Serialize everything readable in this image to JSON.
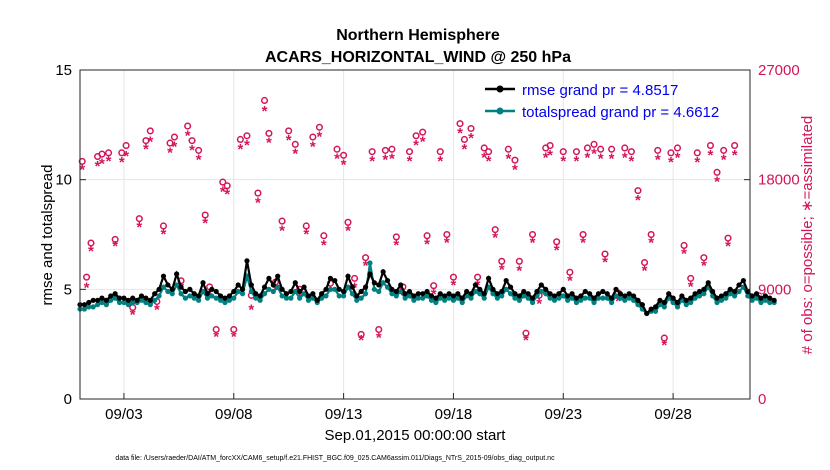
{
  "chart_data": {
    "type": "line",
    "title_line1": "Northern Hemisphere",
    "title_line2": "ACARS_HORIZONTAL_WIND @ 250 hPa",
    "xlabel": "Sep.01,2015 00:00:00 start",
    "ylabel_left": "rmse and totalspread",
    "ylabel_right": "# of obs: o=possible; ∗=assimilated",
    "ylim_left": [
      0,
      15
    ],
    "ylim_right": [
      0,
      27000
    ],
    "xlim_days": [
      0,
      30.5
    ],
    "left_ticks": [
      0,
      5,
      10,
      15
    ],
    "right_ticks": [
      0,
      9000,
      18000,
      27000
    ],
    "x_ticks": [
      {
        "day": 2,
        "label": "09/03"
      },
      {
        "day": 7,
        "label": "09/08"
      },
      {
        "day": 12,
        "label": "09/13"
      },
      {
        "day": 17,
        "label": "09/18"
      },
      {
        "day": 22,
        "label": "09/23"
      },
      {
        "day": 27,
        "label": "09/28"
      }
    ],
    "series": [
      {
        "name": "rmse grand pr = 4.8517",
        "color": "#000000",
        "values": [
          4.3,
          4.3,
          4.4,
          4.5,
          4.5,
          4.6,
          4.5,
          4.7,
          4.8,
          4.6,
          4.6,
          4.5,
          4.6,
          4.5,
          4.7,
          4.6,
          4.5,
          4.8,
          5.0,
          5.6,
          5.2,
          5.0,
          5.7,
          5.1,
          4.9,
          5.0,
          4.8,
          4.7,
          5.3,
          4.8,
          5.0,
          4.9,
          4.7,
          4.6,
          4.7,
          4.9,
          5.2,
          5.0,
          6.3,
          5.2,
          4.8,
          4.7,
          5.1,
          5.5,
          5.2,
          5.6,
          5.0,
          4.8,
          4.9,
          5.3,
          4.9,
          5.1,
          4.7,
          4.8,
          4.5,
          4.8,
          5.0,
          5.5,
          5.4,
          5.0,
          4.9,
          5.6,
          5.1,
          4.7,
          4.9,
          5.1,
          5.7,
          5.3,
          5.2,
          5.8,
          5.4,
          5.0,
          4.9,
          5.2,
          4.8,
          4.9,
          4.7,
          4.8,
          4.8,
          4.9,
          4.7,
          4.6,
          4.8,
          4.7,
          4.8,
          4.7,
          4.8,
          4.6,
          4.9,
          4.8,
          5.2,
          5.0,
          4.8,
          5.5,
          5.0,
          4.8,
          4.9,
          5.4,
          5.1,
          4.8,
          4.7,
          4.9,
          4.8,
          4.6,
          4.9,
          5.2,
          5.0,
          4.8,
          4.7,
          4.8,
          5.0,
          4.7,
          4.8,
          4.6,
          4.7,
          4.9,
          4.8,
          4.6,
          4.8,
          4.9,
          4.8,
          4.6,
          5.0,
          4.8,
          4.7,
          4.8,
          4.7,
          4.5,
          4.3,
          3.9,
          4.1,
          4.2,
          4.5,
          4.4,
          4.8,
          4.6,
          4.4,
          4.7,
          4.5,
          4.6,
          4.8,
          4.9,
          5.0,
          5.3,
          4.9,
          4.6,
          4.7,
          4.8,
          5.0,
          4.9,
          5.2,
          5.4,
          4.9,
          4.7,
          4.8,
          4.6,
          4.7,
          4.6,
          4.5
        ],
        "days_start": 0.0,
        "days_step": 0.2
      },
      {
        "name": "totalspread grand pr = 4.6612",
        "color": "#008080",
        "values": [
          4.1,
          4.1,
          4.2,
          4.2,
          4.3,
          4.4,
          4.3,
          4.5,
          4.6,
          4.4,
          4.4,
          4.3,
          4.4,
          4.4,
          4.5,
          4.4,
          4.3,
          4.5,
          4.7,
          5.1,
          4.9,
          4.8,
          5.2,
          4.8,
          4.6,
          4.7,
          4.6,
          4.5,
          4.9,
          4.6,
          4.7,
          4.6,
          4.5,
          4.4,
          4.5,
          4.6,
          4.9,
          4.8,
          5.6,
          4.9,
          4.6,
          4.5,
          4.8,
          5.0,
          4.9,
          5.1,
          4.7,
          4.6,
          4.6,
          4.9,
          4.6,
          4.8,
          4.5,
          4.6,
          4.4,
          4.6,
          4.7,
          5.0,
          5.0,
          4.7,
          4.7,
          5.1,
          4.8,
          4.5,
          4.6,
          4.8,
          6.2,
          5.0,
          4.9,
          5.3,
          5.1,
          4.8,
          4.7,
          4.9,
          4.6,
          4.7,
          4.5,
          4.6,
          4.6,
          4.7,
          4.5,
          4.4,
          4.6,
          4.5,
          4.6,
          4.5,
          4.6,
          4.4,
          4.7,
          4.6,
          4.9,
          4.8,
          4.6,
          5.1,
          4.8,
          4.6,
          4.7,
          5.0,
          4.8,
          4.6,
          4.5,
          4.7,
          4.6,
          4.4,
          4.7,
          4.9,
          4.8,
          4.6,
          4.5,
          4.6,
          4.7,
          4.5,
          4.6,
          4.4,
          4.5,
          4.6,
          4.6,
          4.4,
          4.6,
          4.6,
          4.6,
          4.4,
          4.7,
          4.6,
          4.5,
          4.6,
          4.5,
          4.3,
          4.1,
          3.9,
          4.0,
          4.0,
          4.3,
          4.2,
          4.6,
          4.4,
          4.2,
          4.5,
          4.3,
          4.4,
          4.6,
          4.7,
          4.8,
          5.1,
          4.7,
          4.4,
          4.5,
          4.6,
          4.8,
          4.7,
          4.9,
          5.1,
          4.7,
          4.5,
          4.6,
          4.4,
          4.5,
          4.4,
          4.4
        ],
        "days_start": 0.0,
        "days_step": 0.2
      }
    ],
    "obs_possible": [
      [
        0.1,
        19500
      ],
      [
        0.3,
        10000
      ],
      [
        0.5,
        12800
      ],
      [
        0.8,
        19900
      ],
      [
        1.0,
        20100
      ],
      [
        1.3,
        20200
      ],
      [
        1.6,
        13100
      ],
      [
        1.9,
        20200
      ],
      [
        2.1,
        20800
      ],
      [
        2.4,
        7500
      ],
      [
        2.7,
        14800
      ],
      [
        3.0,
        21200
      ],
      [
        3.2,
        22000
      ],
      [
        3.5,
        8000
      ],
      [
        3.8,
        14200
      ],
      [
        4.1,
        21000
      ],
      [
        4.3,
        21500
      ],
      [
        4.6,
        9700
      ],
      [
        4.9,
        22400
      ],
      [
        5.1,
        21200
      ],
      [
        5.4,
        20400
      ],
      [
        5.7,
        15100
      ],
      [
        5.9,
        9200
      ],
      [
        6.2,
        5700
      ],
      [
        6.5,
        17800
      ],
      [
        6.7,
        17500
      ],
      [
        7.0,
        5700
      ],
      [
        7.3,
        21300
      ],
      [
        7.6,
        21600
      ],
      [
        7.8,
        8500
      ],
      [
        8.1,
        16900
      ],
      [
        8.4,
        24500
      ],
      [
        8.6,
        21800
      ],
      [
        8.9,
        9600
      ],
      [
        9.2,
        14600
      ],
      [
        9.5,
        22000
      ],
      [
        9.8,
        20900
      ],
      [
        10.0,
        9000
      ],
      [
        10.3,
        14200
      ],
      [
        10.6,
        21500
      ],
      [
        10.9,
        22300
      ],
      [
        11.1,
        13400
      ],
      [
        11.4,
        9500
      ],
      [
        11.7,
        20500
      ],
      [
        12.0,
        20000
      ],
      [
        12.2,
        14500
      ],
      [
        12.5,
        9900
      ],
      [
        12.8,
        5300
      ],
      [
        13.0,
        11600
      ],
      [
        13.3,
        20300
      ],
      [
        13.6,
        5700
      ],
      [
        13.9,
        20400
      ],
      [
        14.2,
        20500
      ],
      [
        14.4,
        13300
      ],
      [
        14.7,
        9200
      ],
      [
        15.0,
        20300
      ],
      [
        15.3,
        21600
      ],
      [
        15.6,
        21900
      ],
      [
        15.8,
        13400
      ],
      [
        16.1,
        9300
      ],
      [
        16.4,
        20300
      ],
      [
        16.7,
        13500
      ],
      [
        17.0,
        10000
      ],
      [
        17.3,
        22600
      ],
      [
        17.5,
        21300
      ],
      [
        17.8,
        22200
      ],
      [
        18.1,
        10000
      ],
      [
        18.4,
        20600
      ],
      [
        18.6,
        20300
      ],
      [
        18.9,
        13900
      ],
      [
        19.2,
        11300
      ],
      [
        19.5,
        20500
      ],
      [
        19.8,
        19600
      ],
      [
        20.0,
        11300
      ],
      [
        20.3,
        5400
      ],
      [
        20.6,
        13500
      ],
      [
        20.9,
        8500
      ],
      [
        21.2,
        20600
      ],
      [
        21.4,
        20800
      ],
      [
        21.7,
        12900
      ],
      [
        22.0,
        20300
      ],
      [
        22.3,
        10400
      ],
      [
        22.6,
        20300
      ],
      [
        22.9,
        13500
      ],
      [
        23.1,
        20600
      ],
      [
        23.4,
        20900
      ],
      [
        23.7,
        20500
      ],
      [
        23.9,
        11900
      ],
      [
        24.2,
        20500
      ],
      [
        24.5,
        8700
      ],
      [
        24.8,
        20600
      ],
      [
        25.1,
        20300
      ],
      [
        25.4,
        17100
      ],
      [
        25.7,
        11200
      ],
      [
        26.0,
        13500
      ],
      [
        26.3,
        20400
      ],
      [
        26.6,
        5000
      ],
      [
        26.9,
        20200
      ],
      [
        27.2,
        20600
      ],
      [
        27.5,
        12600
      ],
      [
        27.8,
        9900
      ],
      [
        28.1,
        20200
      ],
      [
        28.4,
        11600
      ],
      [
        28.7,
        20800
      ],
      [
        29.0,
        18600
      ],
      [
        29.3,
        20400
      ],
      [
        29.5,
        13200
      ],
      [
        29.8,
        20800
      ]
    ],
    "obs_assimilated": [
      [
        0.1,
        19000
      ],
      [
        0.3,
        9300
      ],
      [
        0.5,
        12300
      ],
      [
        0.8,
        19300
      ],
      [
        1.0,
        19500
      ],
      [
        1.3,
        19700
      ],
      [
        1.6,
        12700
      ],
      [
        1.9,
        19600
      ],
      [
        2.1,
        20100
      ],
      [
        2.4,
        7100
      ],
      [
        2.7,
        14300
      ],
      [
        3.0,
        20700
      ],
      [
        3.2,
        21300
      ],
      [
        3.5,
        7500
      ],
      [
        3.8,
        13700
      ],
      [
        4.1,
        20400
      ],
      [
        4.3,
        20900
      ],
      [
        4.6,
        9300
      ],
      [
        4.9,
        21800
      ],
      [
        5.1,
        20600
      ],
      [
        5.4,
        19800
      ],
      [
        5.7,
        14600
      ],
      [
        5.9,
        8800
      ],
      [
        6.2,
        5300
      ],
      [
        6.5,
        17200
      ],
      [
        6.7,
        17000
      ],
      [
        7.0,
        5300
      ],
      [
        7.3,
        20700
      ],
      [
        7.6,
        21000
      ],
      [
        7.8,
        7500
      ],
      [
        8.1,
        16300
      ],
      [
        8.4,
        23800
      ],
      [
        8.6,
        21200
      ],
      [
        8.9,
        9100
      ],
      [
        9.2,
        14000
      ],
      [
        9.5,
        21400
      ],
      [
        9.8,
        20300
      ],
      [
        10.0,
        8500
      ],
      [
        10.3,
        13700
      ],
      [
        10.6,
        20900
      ],
      [
        10.9,
        21700
      ],
      [
        11.1,
        12800
      ],
      [
        11.4,
        9000
      ],
      [
        11.7,
        19900
      ],
      [
        12.0,
        19400
      ],
      [
        12.2,
        14000
      ],
      [
        12.5,
        9300
      ],
      [
        12.8,
        5000
      ],
      [
        13.0,
        11100
      ],
      [
        13.3,
        19700
      ],
      [
        13.6,
        5200
      ],
      [
        13.9,
        19800
      ],
      [
        14.2,
        19900
      ],
      [
        14.4,
        12800
      ],
      [
        14.7,
        8700
      ],
      [
        15.0,
        19700
      ],
      [
        15.3,
        21000
      ],
      [
        15.6,
        21300
      ],
      [
        15.8,
        12900
      ],
      [
        16.1,
        8800
      ],
      [
        16.4,
        19700
      ],
      [
        16.7,
        13000
      ],
      [
        17.0,
        9500
      ],
      [
        17.3,
        22000
      ],
      [
        17.5,
        20700
      ],
      [
        17.8,
        21600
      ],
      [
        18.1,
        9500
      ],
      [
        18.4,
        20000
      ],
      [
        18.6,
        19700
      ],
      [
        18.9,
        13400
      ],
      [
        19.2,
        10800
      ],
      [
        19.5,
        19900
      ],
      [
        19.8,
        19000
      ],
      [
        20.0,
        10700
      ],
      [
        20.3,
        5000
      ],
      [
        20.6,
        13000
      ],
      [
        20.9,
        8000
      ],
      [
        21.2,
        20000
      ],
      [
        21.4,
        20200
      ],
      [
        21.7,
        12400
      ],
      [
        22.0,
        19700
      ],
      [
        22.3,
        9900
      ],
      [
        22.6,
        19700
      ],
      [
        22.9,
        13000
      ],
      [
        23.1,
        20000
      ],
      [
        23.4,
        20300
      ],
      [
        23.7,
        19900
      ],
      [
        23.9,
        11400
      ],
      [
        24.2,
        19900
      ],
      [
        24.5,
        8200
      ],
      [
        24.8,
        20000
      ],
      [
        25.1,
        19700
      ],
      [
        25.4,
        16500
      ],
      [
        25.7,
        10700
      ],
      [
        26.0,
        13000
      ],
      [
        26.3,
        19800
      ],
      [
        26.6,
        4600
      ],
      [
        26.9,
        19600
      ],
      [
        27.2,
        20000
      ],
      [
        27.5,
        12100
      ],
      [
        27.8,
        9400
      ],
      [
        28.1,
        19600
      ],
      [
        28.4,
        11100
      ],
      [
        28.7,
        20200
      ],
      [
        29.0,
        18000
      ],
      [
        29.3,
        19800
      ],
      [
        29.5,
        12700
      ],
      [
        29.8,
        20200
      ]
    ],
    "legend_position": "top-right",
    "footer_note": "data file: /Users/raeder/DAI/ATM_forcXX/CAM6_setup/f.e21.FHIST_BGC.f09_025.CAM6assim.011/Diags_NTrS_2015-09/obs_diag_output.nc"
  },
  "colors": {
    "rmse": "#000000",
    "spread": "#008080",
    "obs": "#d4145a"
  }
}
